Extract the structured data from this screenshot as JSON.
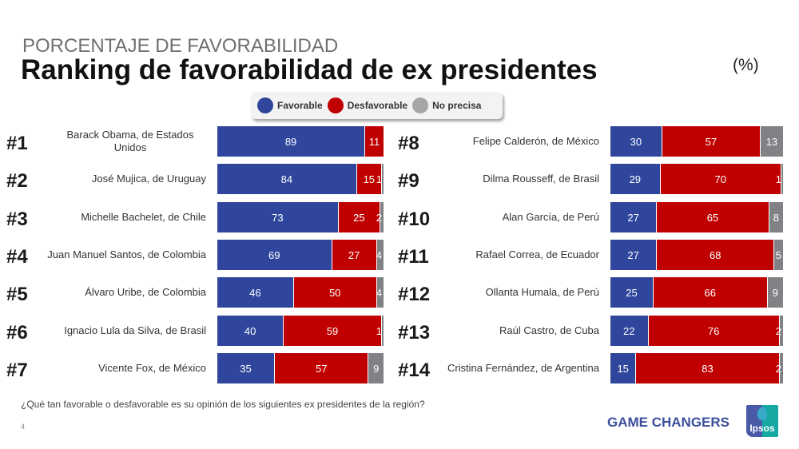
{
  "header": {
    "supertitle": "PORCENTAJE DE FAVORABILIDAD",
    "title": "Ranking de favorabilidad de ex presidentes",
    "unit": "(%)"
  },
  "legend": [
    {
      "label": "Favorable",
      "color": "#2f469c"
    },
    {
      "label": "Desfavorable",
      "color": "#c00000"
    },
    {
      "label": "No precisa",
      "color": "#a6a6a6"
    }
  ],
  "colors": {
    "favorable": "#2f469c",
    "desfavorable": "#c00000",
    "no_precisa": "#808285"
  },
  "chart_data": {
    "type": "bar",
    "orientation": "horizontal-stacked",
    "title": "Ranking de favorabilidad de ex presidentes",
    "subtitle": "PORCENTAJE DE FAVORABILIDAD",
    "unit": "%",
    "legend_position": "top-center",
    "xlim": [
      0,
      100
    ],
    "series_names": [
      "Favorable",
      "Desfavorable",
      "No precisa"
    ],
    "rows": [
      {
        "rank": "#1",
        "name": "Barack Obama, de Estados Unidos",
        "values": [
          89,
          11,
          0
        ],
        "labels": [
          "89",
          "11",
          ""
        ]
      },
      {
        "rank": "#2",
        "name": "José Mujica, de Uruguay",
        "values": [
          84,
          15,
          1
        ],
        "labels": [
          "84",
          "15",
          "1"
        ]
      },
      {
        "rank": "#3",
        "name": "Michelle Bachelet, de Chile",
        "values": [
          73,
          25,
          2
        ],
        "labels": [
          "73",
          "25",
          "2"
        ]
      },
      {
        "rank": "#4",
        "name": "Juan Manuel Santos, de Colombia",
        "values": [
          69,
          27,
          4
        ],
        "labels": [
          "69",
          "27",
          "4"
        ]
      },
      {
        "rank": "#5",
        "name": "Álvaro Uribe, de Colombia",
        "values": [
          46,
          50,
          4
        ],
        "labels": [
          "46",
          "50",
          "4"
        ]
      },
      {
        "rank": "#6",
        "name": "Ignacio Lula da Silva, de Brasil",
        "values": [
          40,
          59,
          1
        ],
        "labels": [
          "40",
          "59",
          "1"
        ]
      },
      {
        "rank": "#7",
        "name": "Vicente Fox, de México",
        "values": [
          35,
          57,
          9
        ],
        "labels": [
          "35",
          "57",
          "9"
        ]
      },
      {
        "rank": "#8",
        "name": "Felipe Calderón, de México",
        "values": [
          30,
          57,
          13
        ],
        "labels": [
          "30",
          "57",
          "13"
        ]
      },
      {
        "rank": "#9",
        "name": "Dilma Rousseff, de Brasil",
        "values": [
          29,
          70,
          1
        ],
        "labels": [
          "29",
          "70",
          "1"
        ]
      },
      {
        "rank": "#10",
        "name": "Alan García, de Perú",
        "values": [
          27,
          65,
          8
        ],
        "labels": [
          "27",
          "65",
          "8"
        ]
      },
      {
        "rank": "#11",
        "name": "Rafael Correa, de Ecuador",
        "values": [
          27,
          68,
          5
        ],
        "labels": [
          "27",
          "68",
          "5"
        ]
      },
      {
        "rank": "#12",
        "name": "Ollanta Humala, de Perú",
        "values": [
          25,
          66,
          9
        ],
        "labels": [
          "25",
          "66",
          "9"
        ]
      },
      {
        "rank": "#13",
        "name": "Raúl Castro, de Cuba",
        "values": [
          22,
          76,
          2
        ],
        "labels": [
          "22",
          "76",
          "2"
        ]
      },
      {
        "rank": "#14",
        "name": "Cristina Fernández, de Argentina",
        "values": [
          15,
          83,
          2
        ],
        "labels": [
          "15",
          "83",
          "2"
        ]
      }
    ]
  },
  "footer": {
    "question": "¿Qué tan favorable o desfavorable es su opinión de los siguientes ex presidentes de la región?",
    "page_number": "4",
    "brand": "GAME CHANGERS",
    "logo_text": "Ipsos"
  }
}
